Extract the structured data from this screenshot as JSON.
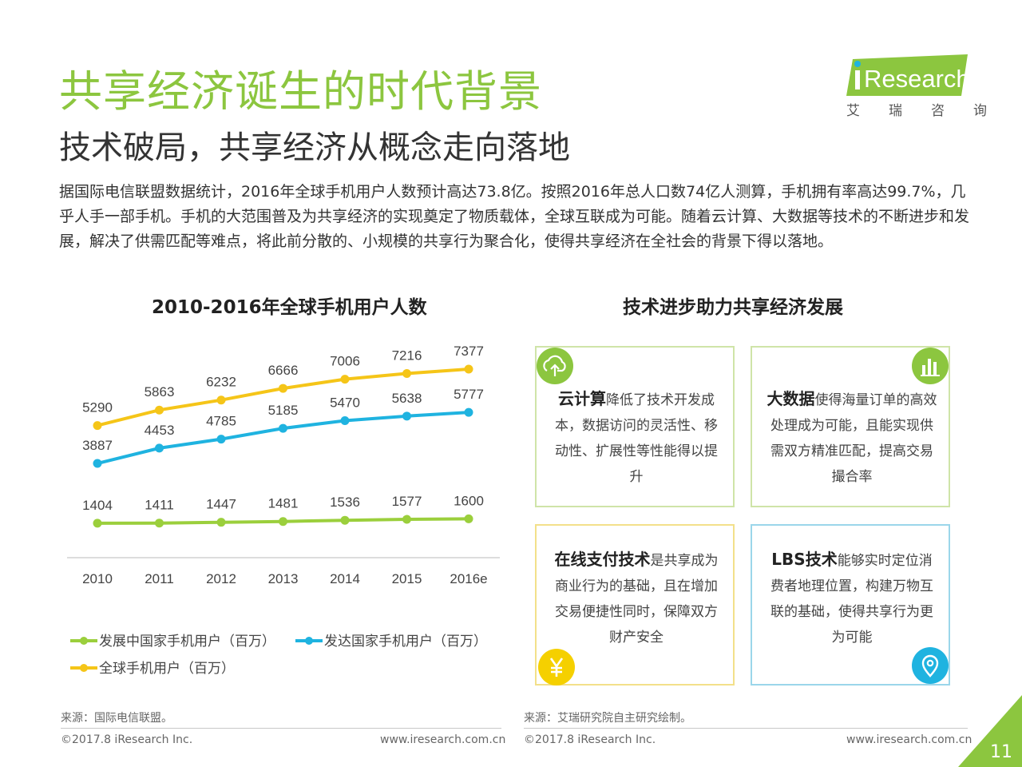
{
  "header": {
    "title": "共享经济诞生的时代背景",
    "subtitle": "技术破局，共享经济从概念走向落地",
    "logo_brand": "Research",
    "logo_tagline": "艾瑞咨询"
  },
  "intro": "据国际电信联盟数据统计，2016年全球手机用户人数预计高达73.8亿。按照2016年总人口数74亿人测算，手机拥有率高达99.7%，几乎人手一部手机。手机的大范围普及为共享经济的实现奠定了物质载体，全球互联成为可能。随着云计算、大数据等技术的不断进步和发展，解决了供需匹配等难点，将此前分散的、小规模的共享行为聚合化，使得共享经济在全社会的背景下得以落地。",
  "chart_data": {
    "type": "line",
    "title": "2010-2016年全球手机用户人数",
    "categories": [
      "2010",
      "2011",
      "2012",
      "2013",
      "2014",
      "2015",
      "2016e"
    ],
    "series": [
      {
        "name": "全球手机用户（百万）",
        "color": "#f5c518",
        "values": [
          5290,
          5863,
          6232,
          6666,
          7006,
          7216,
          7377
        ]
      },
      {
        "name": "发达国家手机用户（百万）",
        "color": "#1fb3e0",
        "values": [
          3887,
          4453,
          4785,
          5185,
          5470,
          5638,
          5777
        ]
      },
      {
        "name": "发展中国家手机用户（百万）",
        "color": "#9bcf3c",
        "values": [
          1404,
          1411,
          1447,
          1481,
          1536,
          1577,
          1600
        ]
      }
    ],
    "legend": [
      "发展中国家手机用户（百万）",
      "发达国家手机用户（百万）",
      "全球手机用户（百万）"
    ]
  },
  "panel": {
    "title": "技术进步助力共享经济发展",
    "cards": [
      {
        "bold": "云计算",
        "text": "降低了技术开发成本，数据访问的灵活性、移动性、扩展性等性能得以提升",
        "icon": "cloud-upload-icon"
      },
      {
        "bold": "大数据",
        "text": "使得海量订单的高效处理成为可能，且能实现供需双方精准匹配，提高交易撮合率",
        "icon": "bar-chart-icon"
      },
      {
        "bold": "在线支付技术",
        "text": "是共享成为商业行为的基础，且在增加交易便捷性同时，保障双方财产安全",
        "icon": "yuan-icon"
      },
      {
        "bold": "LBS技术",
        "text": "能够实时定位消费者地理位置，构建万物互联的基础，使得共享行为更为可能",
        "icon": "location-pin-icon"
      }
    ],
    "colors": {
      "green": "#8cc63f",
      "blue": "#1fb3e0",
      "yellow": "#f5d000"
    }
  },
  "footer": {
    "left_source": "来源：国际电信联盟。",
    "right_source": "来源：艾瑞研究院自主研究绘制。",
    "copyright": "©2017.8 iResearch Inc.",
    "website": "www.iresearch.com.cn",
    "page_number": "11"
  }
}
